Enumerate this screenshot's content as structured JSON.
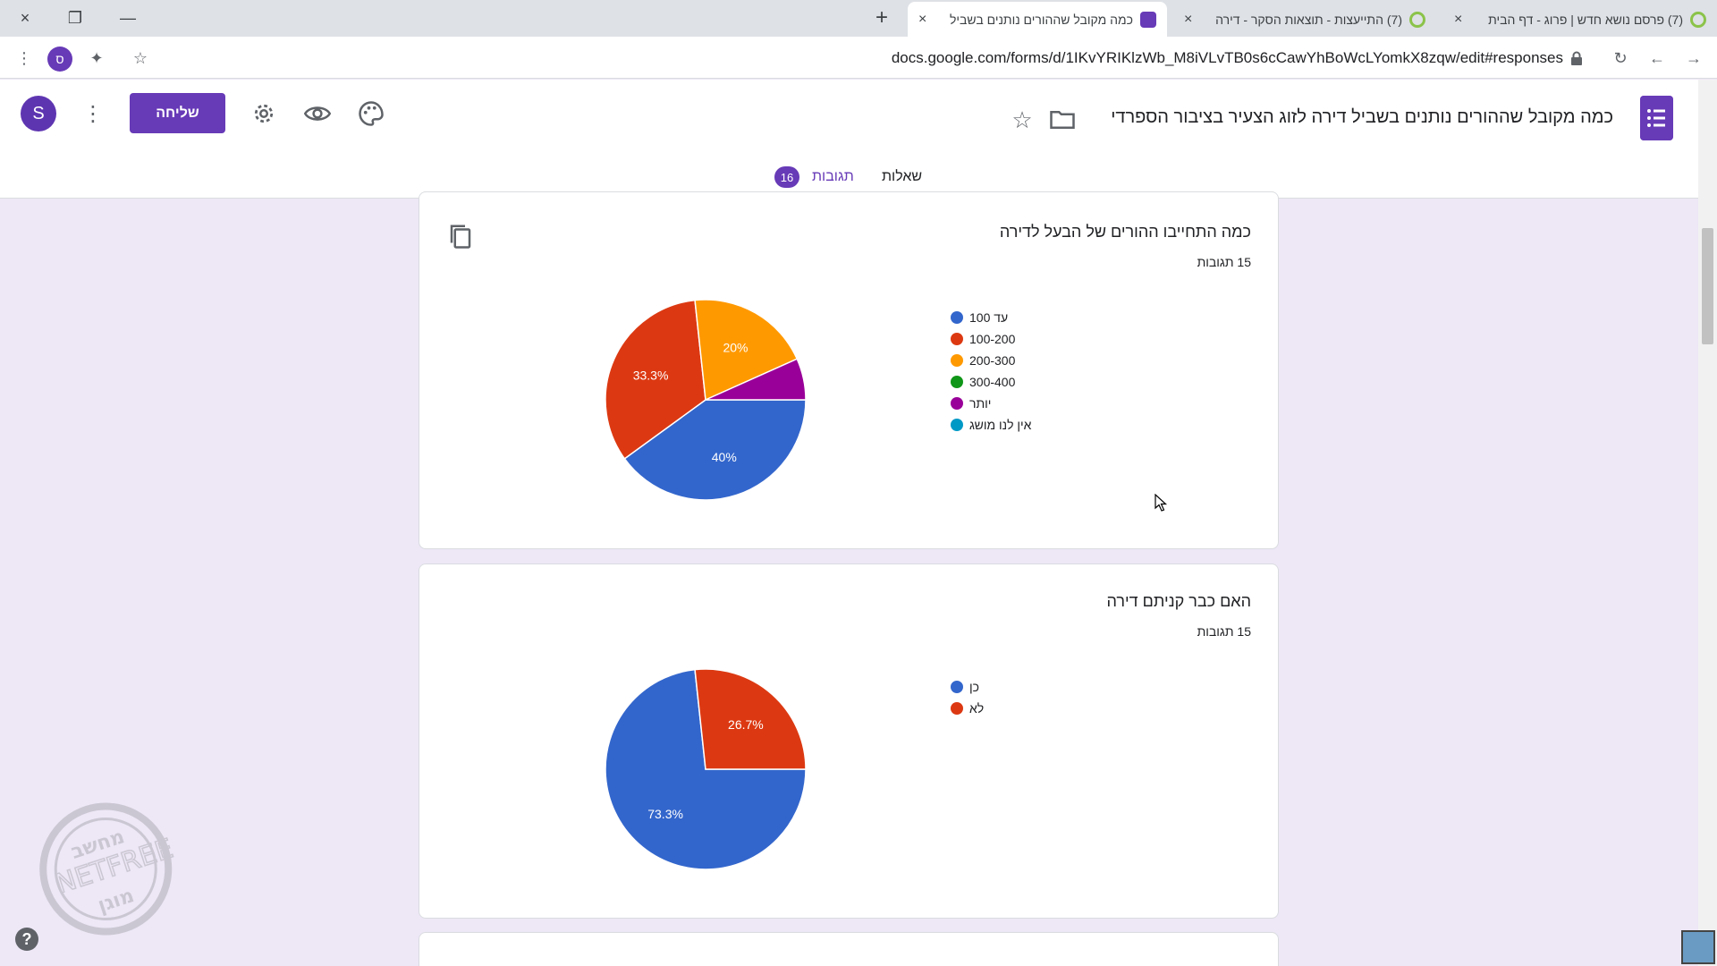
{
  "browser": {
    "tabs": [
      {
        "title": "(7) פרסם נושא חדש | פרוג - דף הבית",
        "favicon": "prog-favicon",
        "close": "×"
      },
      {
        "title": "(7) התייעצות - תוצאות הסקר - דירה",
        "favicon": "prog-favicon",
        "close": "×"
      },
      {
        "title": "כמה מקובל שההורים נותנים בשביל",
        "favicon": "google-forms-favicon",
        "close": "×"
      }
    ],
    "new_tab_label": "+",
    "url": "docs.google.com/forms/d/1IKvYRIKlzWb_M8iVLvTB0s6cCawYhBoWcLYomkX8zqw/edit#responses",
    "profile_letter": "ס",
    "window_controls": {
      "close": "×",
      "restore": "❐",
      "minimize": "—"
    },
    "toolbar_icons": {
      "menu": "⋮",
      "extensions": "✦",
      "star": "☆",
      "reload": "↻",
      "back": "←",
      "forward": "→"
    }
  },
  "form_header": {
    "title": "כמה מקובל שההורים נותנים בשביל דירה לזוג הצעיר בציבור הספרדי",
    "send_label": "שליחה",
    "avatar_letter": "S",
    "more_icon": "⋮",
    "star_icon": "☆",
    "tabs": {
      "questions": "שאלות",
      "responses": "תגובות",
      "responses_count": "16"
    }
  },
  "cards": [
    {
      "question": "כמה התחייבו ההורים של הבעל לדירה",
      "responses_text": "15 תגובות",
      "chart_data": {
        "type": "pie",
        "labels": [
          "עד 100",
          "100-200",
          "200-300",
          "300-400",
          "יותר",
          "אין לנו מושג"
        ],
        "values": [
          40,
          33.3,
          20,
          0,
          6.7,
          0
        ],
        "value_labels": [
          "40%",
          "33.3%",
          "20%",
          "",
          "",
          ""
        ],
        "colors": [
          "#3366cc",
          "#dc3912",
          "#ff9900",
          "#109618",
          "#990099",
          "#0099c6"
        ]
      }
    },
    {
      "question": "האם כבר קניתם דירה",
      "responses_text": "15 תגובות",
      "chart_data": {
        "type": "pie",
        "labels": [
          "כן",
          "לא"
        ],
        "values": [
          73.3,
          26.7
        ],
        "value_labels": [
          "73.3%",
          "26.7%"
        ],
        "colors": [
          "#3366cc",
          "#dc3912"
        ]
      }
    }
  ],
  "help_label": "?",
  "watermark": {
    "lines": [
      "מחשב",
      "NETFREE",
      "מוגן"
    ]
  }
}
